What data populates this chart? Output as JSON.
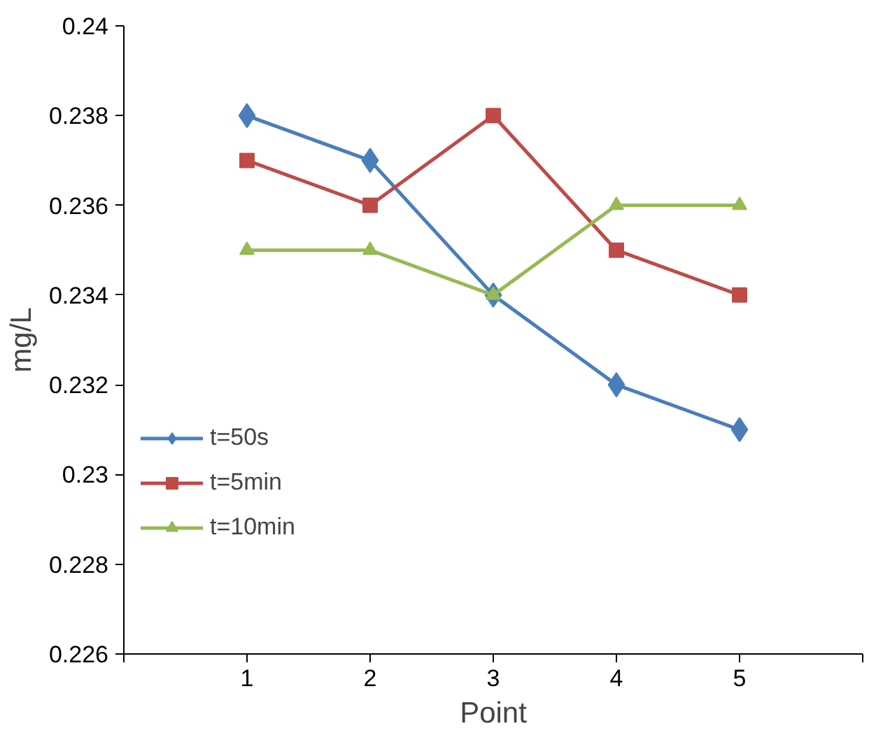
{
  "chart_data": {
    "type": "line",
    "xlabel": "Point",
    "ylabel": "mg/L",
    "x": [
      1,
      2,
      3,
      4,
      5
    ],
    "series": [
      {
        "name": "t=50s",
        "color": "#4a7ebb",
        "marker": "diamond",
        "values": [
          0.238,
          0.237,
          0.234,
          0.232,
          0.231
        ]
      },
      {
        "name": "t=5min",
        "color": "#be4b48",
        "marker": "square",
        "values": [
          0.237,
          0.236,
          0.238,
          0.235,
          0.234
        ]
      },
      {
        "name": "t=10min",
        "color": "#98b954",
        "marker": "triangle",
        "values": [
          0.235,
          0.235,
          0.234,
          0.236,
          0.236
        ]
      }
    ],
    "xlim": [
      0,
      6
    ],
    "xticks": [
      {
        "value": 0,
        "label": null
      },
      1,
      2,
      3,
      4,
      5,
      {
        "value": 6,
        "label": null
      }
    ],
    "ylim": [
      0.226,
      0.24
    ],
    "yticks": [
      0.226,
      0.228,
      0.23,
      0.232,
      0.234,
      0.236,
      0.238,
      0.24
    ],
    "grid": false,
    "legend": "bottom left",
    "line_style": "solid"
  }
}
